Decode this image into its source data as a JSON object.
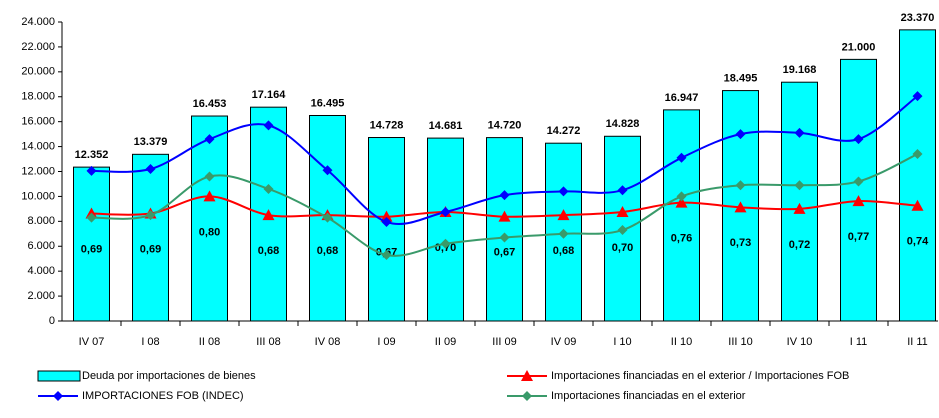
{
  "chart_data": {
    "type": "bar",
    "categories": [
      "IV 07",
      "I 08",
      "II 08",
      "III 08",
      "IV 08",
      "I 09",
      "II 09",
      "III 09",
      "IV 09",
      "I 10",
      "II 10",
      "III 10",
      "IV 10",
      "I 11",
      "II 11"
    ],
    "ylim": [
      0,
      24000
    ],
    "yticks": [
      0,
      {
        "value": 2000,
        "label": "2.000"
      },
      {
        "value": 4000,
        "label": "4.000"
      },
      {
        "value": 6000,
        "label": "6.000"
      },
      {
        "value": 8000,
        "label": "8.000"
      },
      {
        "value": 10000,
        "label": "10.000"
      },
      {
        "value": 12000,
        "label": "12.000"
      },
      {
        "value": 14000,
        "label": "14.000"
      },
      {
        "value": 16000,
        "label": "16.000"
      },
      {
        "value": 18000,
        "label": "18.000"
      },
      {
        "value": 20000,
        "label": "20.000"
      },
      {
        "value": 22000,
        "label": "22.000"
      },
      {
        "value": 24000,
        "label": "24.000"
      }
    ],
    "y2lim": [
      0,
      1.92
    ],
    "series": [
      {
        "name": "Deuda por importaciones de bienes",
        "type": "bar",
        "color": "#00ffff",
        "values": [
          12352,
          13379,
          16453,
          17164,
          16495,
          14728,
          14681,
          14720,
          14272,
          14828,
          16947,
          18495,
          19168,
          21000,
          23370
        ],
        "value_labels": [
          "12.352",
          "13.379",
          "16.453",
          "17.164",
          "16.495",
          "14.728",
          "14.681",
          "14.720",
          "14.272",
          "14.828",
          "16.947",
          "18.495",
          "19.168",
          "21.000",
          "23.370"
        ]
      },
      {
        "name": "Importaciones financiadas en el exterior / Importaciones FOB",
        "type": "line",
        "marker": "triangle",
        "color": "#ff0000",
        "axis": "y2",
        "values": [
          0.69,
          0.69,
          0.8,
          0.68,
          0.68,
          0.67,
          0.7,
          0.67,
          0.68,
          0.7,
          0.76,
          0.73,
          0.72,
          0.77,
          0.74
        ],
        "value_labels": [
          "0,69",
          "0,69",
          "0,80",
          "0,68",
          "0,68",
          "0,67",
          "0,70",
          "0,67",
          "0,68",
          "0,70",
          "0,76",
          "0,73",
          "0,72",
          "0,77",
          "0,74"
        ]
      },
      {
        "name": "IMPORTACIONES FOB (INDEC)",
        "type": "line",
        "marker": "diamond",
        "color": "#0000ff",
        "values": [
          12050,
          12200,
          14600,
          15700,
          12100,
          7950,
          8750,
          10100,
          10400,
          10500,
          13100,
          15000,
          15100,
          14600,
          18050
        ]
      },
      {
        "name": "Importaciones financiadas en el exterior",
        "type": "line",
        "marker": "diamond",
        "color": "#3a9a6a",
        "values": [
          8300,
          8500,
          11600,
          10600,
          8300,
          5300,
          6200,
          6700,
          7000,
          7300,
          10000,
          10900,
          10900,
          11200,
          13400
        ]
      }
    ]
  }
}
